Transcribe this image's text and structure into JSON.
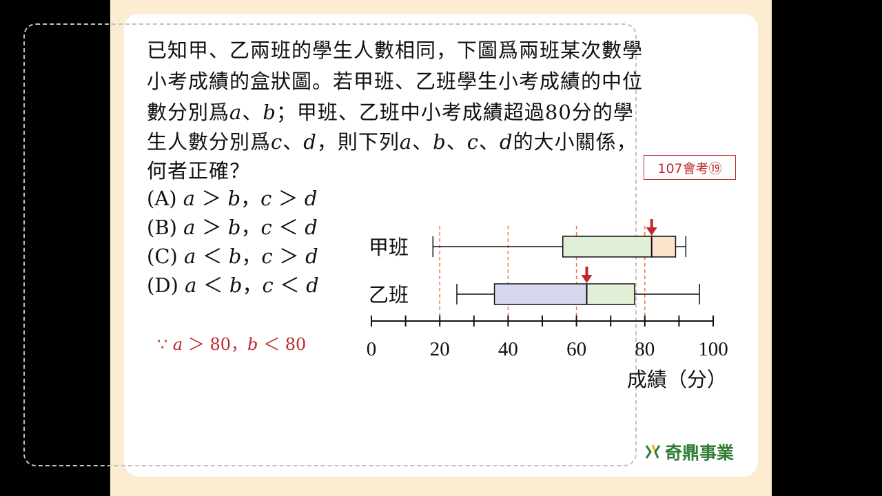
{
  "question": {
    "line1": "已知甲、乙兩班的學生人數相同，下圖爲兩班某次數學",
    "line2": "小考成績的盒狀圖。若甲班、乙班學生小考成績的中位",
    "line3_a": "數分別爲",
    "line3_b": "；甲班、乙班中小考成績超過",
    "line3_num": "80",
    "line3_c": "分的學",
    "line4_a": "生人數分別爲",
    "line4_b": "，則下列",
    "line4_c": "的大小關係，",
    "line5": "何者正確？",
    "var_a": "a",
    "var_b": "b",
    "var_c": "c",
    "var_d": "d",
    "sep": "、",
    "comma": "，"
  },
  "options": [
    {
      "label": "(A)",
      "rel1": "＞",
      "rel2": "＞"
    },
    {
      "label": "(B)",
      "rel1": "＞",
      "rel2": "＜"
    },
    {
      "label": "(C)",
      "rel1": "＜",
      "rel2": "＞"
    },
    {
      "label": "(D)",
      "rel1": "＜",
      "rel2": "＜"
    }
  ],
  "badge": "107會考⑲",
  "hint": {
    "because": "∵",
    "part1": "＞ 80，",
    "part2": "＜ 80"
  },
  "logo": "奇鼎事業",
  "colors": {
    "accent_red": "#c0282d",
    "box_green": "#e1efd6",
    "box_orange": "#fde2cc",
    "box_blue": "#d4d7ee",
    "dash": "#e07a4b"
  },
  "chart_data": {
    "type": "boxplot",
    "xlabel": "成績（分）",
    "xlim": [
      0,
      100
    ],
    "xtick_labels": [
      "0",
      "20",
      "40",
      "60",
      "80",
      "100"
    ],
    "xtick_values": [
      0,
      20,
      40,
      60,
      80,
      100
    ],
    "minor_tick_step": 10,
    "reference_lines": [
      20,
      40,
      60,
      80
    ],
    "series": [
      {
        "name": "甲班",
        "min": 18,
        "q1": 56,
        "median": 82,
        "q3": 89,
        "max": 92,
        "fill_left": "#e1efd6",
        "fill_right": "#fde2cc"
      },
      {
        "name": "乙班",
        "min": 25,
        "q1": 36,
        "median": 63,
        "q3": 77,
        "max": 96,
        "fill_left": "#d4d7ee",
        "fill_right": "#e1efd6"
      }
    ]
  }
}
